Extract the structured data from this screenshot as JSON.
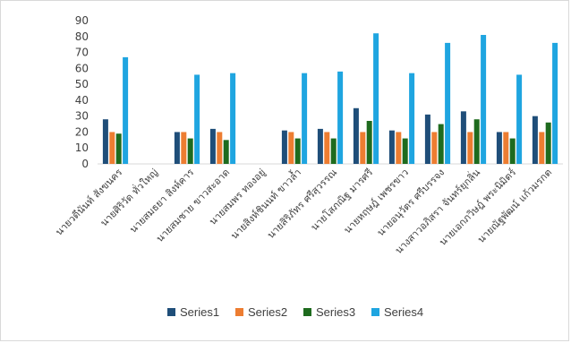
{
  "chart_data": {
    "type": "bar",
    "title": "",
    "xlabel": "",
    "ylabel": "",
    "ylim": [
      0,
      90
    ],
    "ytick_step": 10,
    "grid": false,
    "legend_position": "bottom",
    "categories": [
      "นายวดีนันท์ สังขนคร",
      "นายศิริวัด ทั่วใหญ่",
      "นายสมธยา สิงห์คาร",
      "นายสมชาย ขาวสะอาด",
      "นายสมพร ทองอยู่",
      "นายสิงห์ชินนท์ ขาวล้ำ",
      "นายสิริภัทร ศรีสุวรรณ",
      "นายโสภณิฐ มารศรี",
      "นายหฤษฎ์ เพชรขาว",
      "นายอนุวัตร ศรีบรรจง",
      "นางสาวอภิสรา จันทร์ยุกลิ่น",
      "นายเอกภวิษฎ์ พระนิมิตร์",
      "นายณัฐพัฒน์ แก้วมรกต"
    ],
    "series": [
      {
        "name": "Series1",
        "color": "#1f4e79",
        "values": [
          28,
          null,
          20,
          22,
          null,
          21,
          22,
          35,
          21,
          31,
          33,
          20,
          30
        ]
      },
      {
        "name": "Series2",
        "color": "#ed7d31",
        "values": [
          20,
          null,
          20,
          20,
          null,
          20,
          20,
          20,
          20,
          20,
          20,
          20,
          20
        ]
      },
      {
        "name": "Series3",
        "color": "#1e6b1e",
        "values": [
          19,
          null,
          16,
          15,
          null,
          16,
          16,
          27,
          16,
          25,
          28,
          16,
          26
        ]
      },
      {
        "name": "Series4",
        "color": "#1fa5e0",
        "values": [
          67,
          null,
          56,
          57,
          null,
          57,
          58,
          82,
          57,
          76,
          81,
          56,
          76
        ]
      }
    ]
  }
}
